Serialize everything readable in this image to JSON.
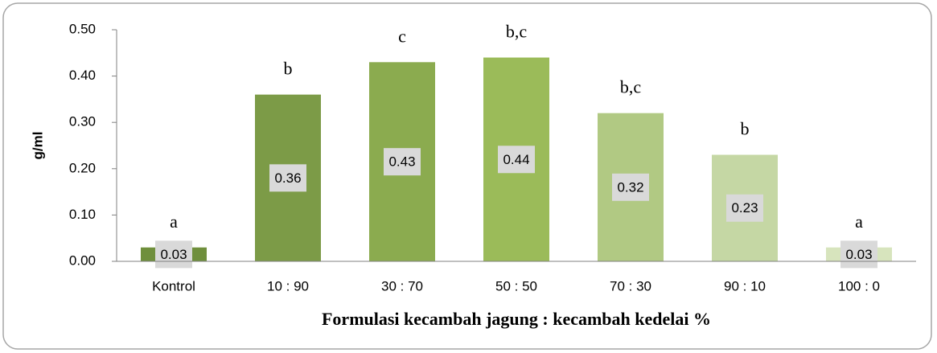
{
  "chart_data": {
    "type": "bar",
    "y_label": "g/ml",
    "x_label": "Formulasi kecambah jagung : kecambah kedelai %",
    "categories": [
      "Kontrol",
      "10 : 90",
      "30 : 70",
      "50 : 50",
      "70 : 30",
      "90 : 10",
      "100 : 0"
    ],
    "values": [
      0.03,
      0.36,
      0.43,
      0.44,
      0.32,
      0.23,
      0.03
    ],
    "colors": [
      "#6f8f3c",
      "#7c9b47",
      "#8bab4f",
      "#9bbb59",
      "#b1c983",
      "#c5d7a4",
      "#d7e4bd"
    ],
    "annotations": [
      "a",
      "b",
      "c",
      "b,c",
      "b,c",
      "b",
      "a"
    ],
    "ylim": [
      0,
      0.5
    ],
    "yticks": [
      {
        "value": 0,
        "label": "0.00"
      },
      {
        "value": 0.1,
        "label": "0.10"
      },
      {
        "value": 0.2,
        "label": "0.20"
      },
      {
        "value": 0.3,
        "label": "0.30"
      },
      {
        "value": 0.4,
        "label": "0.40"
      },
      {
        "value": 0.5,
        "label": "0.50"
      }
    ],
    "grid": false
  }
}
